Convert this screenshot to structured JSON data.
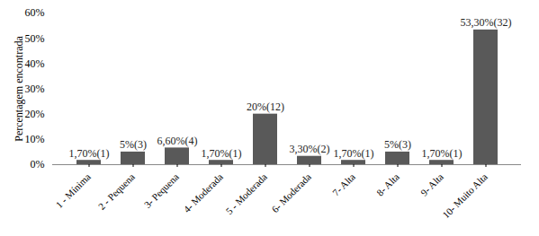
{
  "chart_data": {
    "type": "bar",
    "y_label": "Percentagem encontrada",
    "categories": [
      "1 - Mínima",
      "2 - Pequena",
      "3- Pequena",
      "4- Moderada",
      "5 - Moderada",
      "6- Moderada",
      "7- Alta",
      "8- Alta",
      "9- Alta",
      "10- Muito Alta"
    ],
    "values": [
      1.7,
      5,
      6.6,
      1.7,
      20,
      3.3,
      1.7,
      5,
      1.7,
      53.3
    ],
    "value_labels": [
      "1,70%(1)",
      "5%(3)",
      "6,60%(4)",
      "1,70%(1)",
      "20%(12)",
      "3,30%(2)",
      "1,70%(1)",
      "5%(3)",
      "1,70%(1)",
      "53,30%(32)"
    ],
    "data_labels": true,
    "color": "#595959",
    "ylim": [
      0,
      60
    ],
    "yticks": [
      {
        "value": 0,
        "label": "0%"
      },
      {
        "value": 10,
        "label": "10%"
      },
      {
        "value": 20,
        "label": "20%"
      },
      {
        "value": 30,
        "label": "30%"
      },
      {
        "value": 40,
        "label": "40%"
      },
      {
        "value": 50,
        "label": "50%"
      },
      {
        "value": 60,
        "label": "60%"
      }
    ],
    "grid": false
  }
}
